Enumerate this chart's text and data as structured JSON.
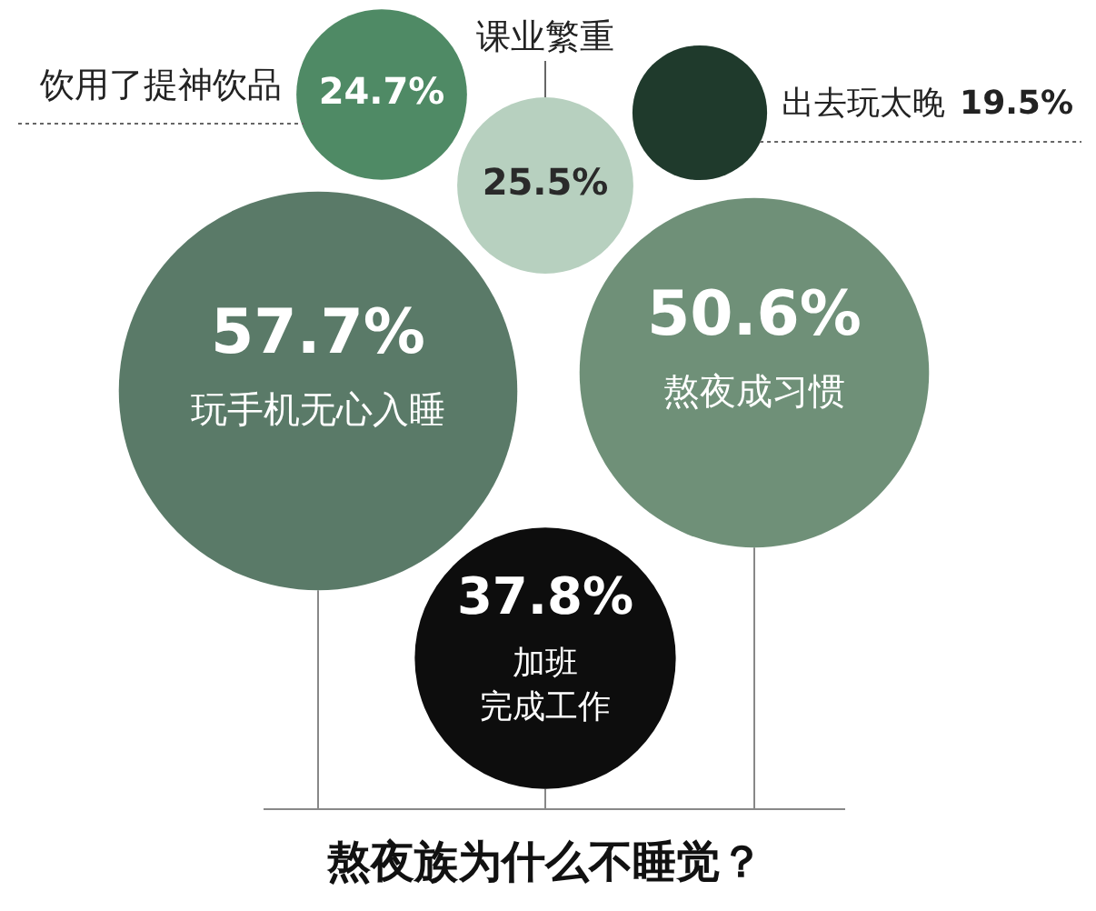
{
  "chart_data": {
    "type": "other",
    "title": "熬夜族为什么不睡觉？",
    "categories": [
      "饮用了提神饮品",
      "课业繁重",
      "出去玩太晚",
      "玩手机无心入睡",
      "熬夜成习惯",
      "加班完成工作"
    ],
    "values": [
      24.7,
      25.5,
      19.5,
      57.7,
      50.6,
      37.8
    ],
    "value_labels": [
      "24.7%",
      "25.5%",
      "19.5%",
      "57.7%",
      "50.6%",
      "37.8%"
    ],
    "colors": [
      "#4f8a65",
      "#b7d0bf",
      "#1f3a2c",
      "#5a7a68",
      "#6f9078",
      "#0d0d0d"
    ]
  }
}
